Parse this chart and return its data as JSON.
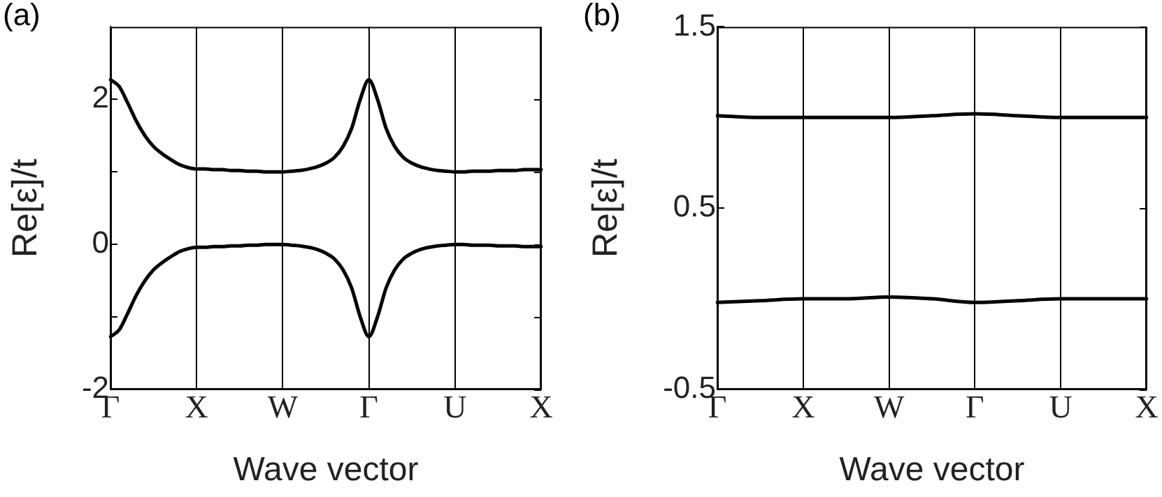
{
  "chart_data": [
    {
      "type": "line",
      "title": "(a)",
      "xlabel": "Wave vector",
      "ylabel": "Re[ε]/t",
      "ylim": [
        -2,
        3
      ],
      "categories": [
        "Γ",
        null,
        null,
        null,
        null,
        null,
        null,
        null,
        null,
        null,
        "X",
        null,
        null,
        null,
        null,
        null,
        null,
        null,
        null,
        null,
        "W",
        null,
        null,
        null,
        null,
        null,
        null,
        null,
        null,
        null,
        "Γ",
        null,
        null,
        null,
        null,
        null,
        null,
        null,
        null,
        null,
        "U",
        null,
        null,
        null,
        null,
        null,
        null,
        null,
        null,
        null,
        "X"
      ],
      "yticks": [
        -2,
        {
          "value": -1,
          "label": null
        },
        0,
        {
          "value": 1,
          "label": null
        },
        2
      ],
      "grid": "x",
      "marker": "none",
      "line_style": "solid",
      "series": [
        {
          "color": "#000000",
          "values": [
            2.27,
            2.18,
            1.95,
            1.7,
            1.5,
            1.35,
            1.25,
            1.17,
            1.1,
            1.06,
            1.04,
            1.04,
            1.03,
            1.03,
            1.02,
            1.02,
            1.01,
            1.01,
            1.0,
            1.0,
            1.0,
            1.01,
            1.02,
            1.04,
            1.07,
            1.12,
            1.2,
            1.35,
            1.6,
            2.0,
            2.27,
            2.0,
            1.6,
            1.35,
            1.2,
            1.12,
            1.07,
            1.04,
            1.02,
            1.01,
            1.0,
            1.0,
            1.01,
            1.01,
            1.01,
            1.02,
            1.02,
            1.02,
            1.03,
            1.03,
            1.03
          ]
        },
        {
          "color": "#000000",
          "values": [
            -1.27,
            -1.18,
            -0.95,
            -0.7,
            -0.5,
            -0.35,
            -0.25,
            -0.17,
            -0.1,
            -0.06,
            -0.04,
            -0.04,
            -0.03,
            -0.03,
            -0.02,
            -0.02,
            -0.01,
            -0.01,
            0.0,
            0.0,
            0.0,
            -0.01,
            -0.02,
            -0.04,
            -0.07,
            -0.12,
            -0.2,
            -0.35,
            -0.6,
            -1.0,
            -1.27,
            -1.0,
            -0.6,
            -0.35,
            -0.2,
            -0.12,
            -0.07,
            -0.04,
            -0.02,
            -0.01,
            0.0,
            0.0,
            -0.01,
            -0.01,
            -0.01,
            -0.02,
            -0.02,
            -0.02,
            -0.03,
            -0.03,
            -0.03
          ]
        }
      ]
    },
    {
      "type": "line",
      "title": "(b)",
      "xlabel": "Wave vector",
      "ylabel": "Re[ε]/t",
      "ylim": [
        -0.5,
        1.5
      ],
      "categories": [
        "Γ",
        null,
        "X",
        null,
        "W",
        null,
        "Γ",
        null,
        "U",
        null,
        "X"
      ],
      "yticks": [
        -0.5,
        0.5,
        1.5
      ],
      "grid": "x",
      "marker": "none",
      "line_style": "solid",
      "series": [
        {
          "color": "#000000",
          "values": [
            1.01,
            1.0,
            1.0,
            1.0,
            1.0,
            1.01,
            1.02,
            1.01,
            1.0,
            1.0,
            1.0
          ]
        },
        {
          "color": "#000000",
          "values": [
            -0.02,
            -0.01,
            0.0,
            0.0,
            0.01,
            0.0,
            -0.02,
            -0.01,
            0.0,
            0.0,
            0.0
          ]
        }
      ]
    }
  ]
}
